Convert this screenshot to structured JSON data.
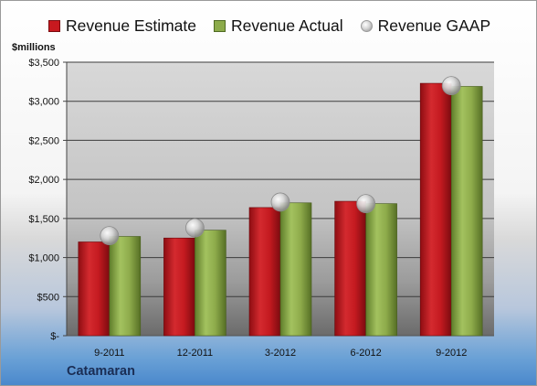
{
  "legend": [
    {
      "label": "Revenue Estimate",
      "color": "#c8191f",
      "marker": "bar"
    },
    {
      "label": "Revenue Actual",
      "color": "#8cab4a",
      "marker": "bar"
    },
    {
      "label": "Revenue GAAP",
      "color": "#c0c0c0",
      "marker": "sphere"
    }
  ],
  "unit_label": "$millions",
  "company": "Catamaran",
  "chart_data": {
    "type": "bar",
    "categories": [
      "9-2011",
      "12-2011",
      "3-2012",
      "6-2012",
      "9-2012"
    ],
    "series": [
      {
        "name": "Revenue Estimate",
        "type": "bar",
        "color": "#c8191f",
        "values": [
          1200,
          1250,
          1640,
          1720,
          3230
        ]
      },
      {
        "name": "Revenue Actual",
        "type": "bar",
        "color": "#8cab4a",
        "values": [
          1270,
          1350,
          1700,
          1690,
          3190
        ]
      },
      {
        "name": "Revenue GAAP",
        "type": "marker",
        "color": "#c0c0c0",
        "values": [
          1280,
          1380,
          1710,
          1690,
          3200
        ]
      }
    ],
    "ylim": [
      0,
      3500
    ],
    "yticks": [
      0,
      500,
      1000,
      1500,
      2000,
      2500,
      3000,
      3500
    ],
    "ytick_labels": [
      "$-",
      "$500",
      "$1,000",
      "$1,500",
      "$2,000",
      "$2,500",
      "$3,000",
      "$3,500"
    ],
    "ylabel": "$millions",
    "grid": true,
    "legend_position": "top"
  }
}
